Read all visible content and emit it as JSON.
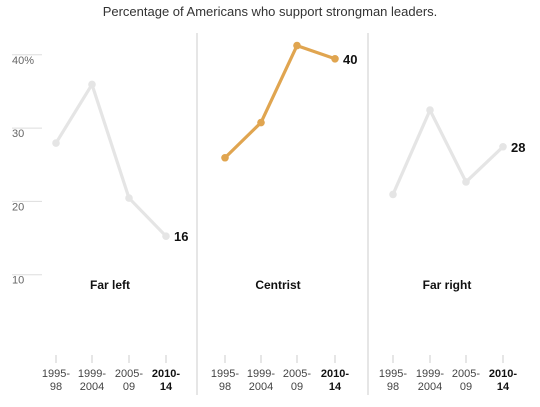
{
  "chart_data": {
    "type": "line",
    "title": "Percentage of Americans who support strongman leaders.",
    "y_ticks": [
      {
        "value": 40,
        "label": "40%"
      },
      {
        "value": 30,
        "label": "30"
      },
      {
        "value": 20,
        "label": "20"
      },
      {
        "value": 10,
        "label": "10"
      }
    ],
    "ylim": [
      0,
      44
    ],
    "categories": [
      {
        "line1": "1995-",
        "line2": "98",
        "bold": false
      },
      {
        "line1": "1999-",
        "line2": "2004",
        "bold": false
      },
      {
        "line1": "2005-",
        "line2": "09",
        "bold": false
      },
      {
        "line1": "2010-",
        "line2": "14",
        "bold": true
      }
    ],
    "panels": [
      {
        "name": "Far left",
        "values": [
          28.5,
          36.5,
          21,
          15.8
        ],
        "end_label": "16",
        "color": "#e5e5e5"
      },
      {
        "name": "Centrist",
        "values": [
          26.5,
          31.3,
          41.8,
          40
        ],
        "end_label": "40",
        "color": "#e0a550"
      },
      {
        "name": "Far right",
        "values": [
          21.5,
          33,
          23.2,
          28
        ],
        "end_label": "28",
        "color": "#e5e5e5"
      }
    ],
    "colors": {
      "axis": "#cccccc",
      "divider": "#cccccc",
      "tick_line": "#dddddd"
    }
  }
}
